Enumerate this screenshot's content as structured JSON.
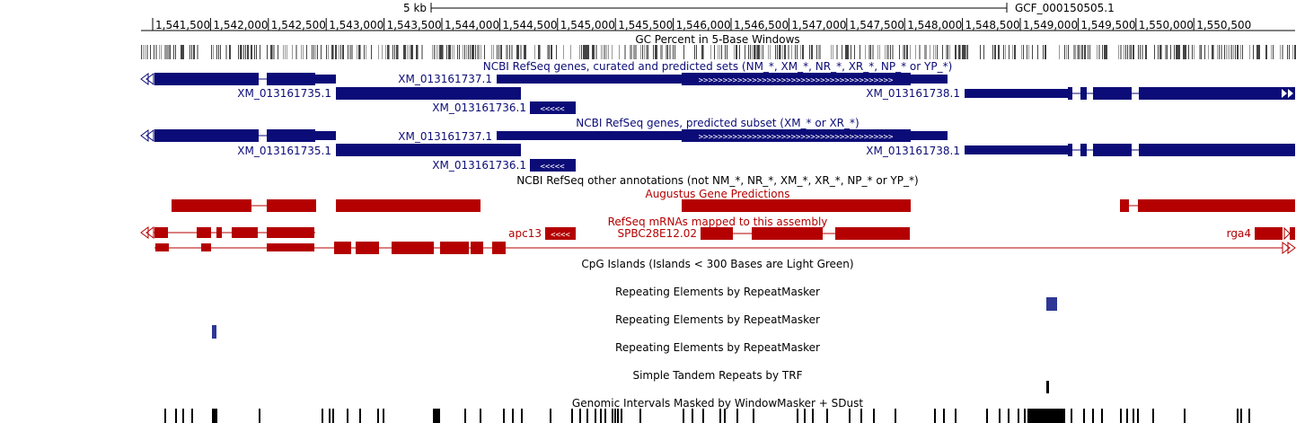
{
  "ruler": {
    "scale_label": "5 kb",
    "assembly_label": "GCF_000150505.1",
    "ticks": [
      "1,541,500",
      "1,542,000",
      "1,542,500",
      "1,543,000",
      "1,543,500",
      "1,544,000",
      "1,544,500",
      "1,545,000",
      "1,545,500",
      "1,546,000",
      "1,546,500",
      "1,547,000",
      "1,547,500",
      "1,548,000",
      "1,548,500",
      "1,549,000",
      "1,549,500",
      "1,550,000",
      "1,550,500"
    ]
  },
  "tracks": {
    "gc_percent": "GC Percent in 5-Base Windows",
    "refseq_all": "NCBI RefSeq genes, curated and predicted sets (NM_*, XM_*, NR_*, XR_*, NP_* or YP_*)",
    "refseq_predicted": "NCBI RefSeq genes, predicted subset (XM_* or XR_*)",
    "refseq_other": "NCBI RefSeq other annotations (not NM_*, NR_*, XM_*, XR_*, NP_* or YP_*)",
    "augustus": "Augustus Gene Predictions",
    "refseq_mrna": "RefSeq mRNAs mapped to this assembly",
    "cpg": "CpG Islands (Islands < 300 Bases are Light Green)",
    "rmsk_1": "Repeating Elements by RepeatMasker",
    "rmsk_2": "Repeating Elements by RepeatMasker",
    "rmsk_3": "Repeating Elements by RepeatMasker",
    "trf": "Simple Tandem Repeats by TRF",
    "windowmasker": "Genomic Intervals Masked by WindowMasker + SDust"
  },
  "gene_labels": {
    "curated": {
      "xm737": "XM_013161737.1",
      "xm735": "XM_013161735.1",
      "xm738": "XM_013161738.1",
      "xm736": "XM_013161736.1"
    },
    "predicted": {
      "xm737": "XM_013161737.1",
      "xm735": "XM_013161735.1",
      "xm738": "XM_013161738.1",
      "xm736": "XM_013161736.1"
    },
    "mrna": {
      "apc13": "apc13",
      "spbc": "SPBC28E12.02",
      "rga4": "rga4"
    }
  },
  "colors": {
    "refseq": "#0c0c78",
    "augustus": "#b40000",
    "rmsk": "#2d3796",
    "ruler": "#000000"
  }
}
